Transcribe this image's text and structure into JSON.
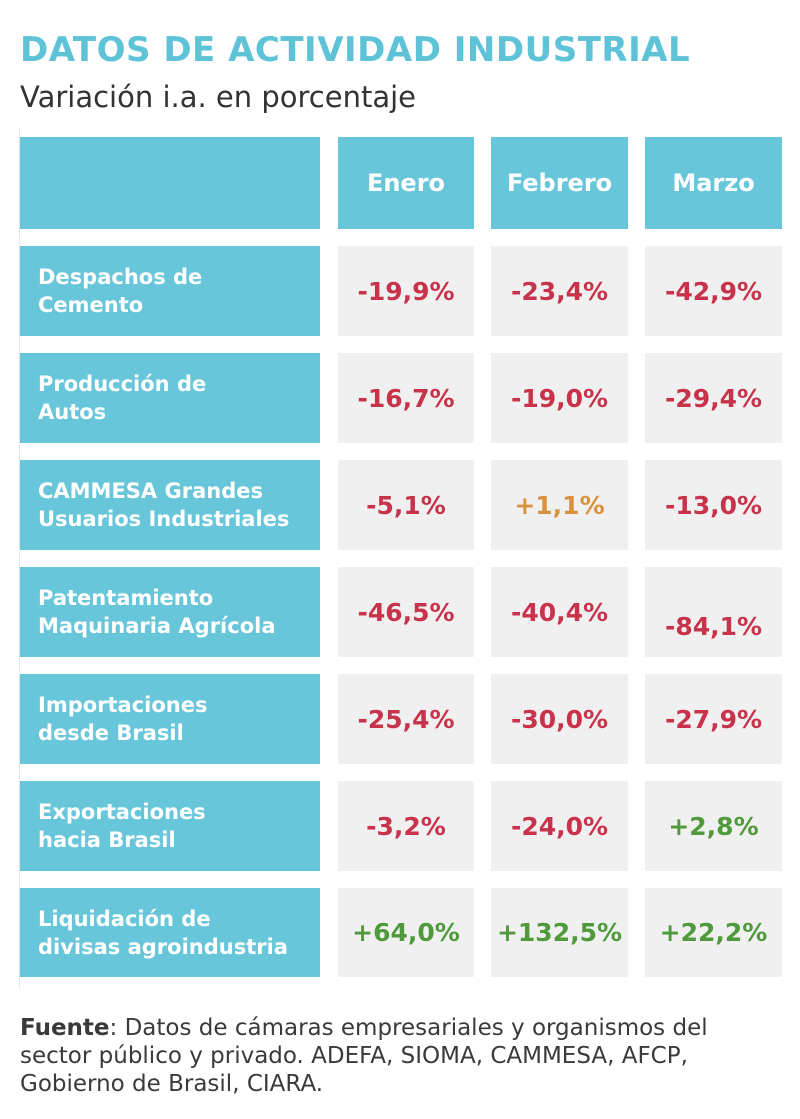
{
  "title": "DATOS DE ACTIVIDAD INDUSTRIAL",
  "subtitle": "Variación i.a. en porcentaje",
  "colors": {
    "negative": "#c8324a",
    "neutral_positive": "#d9923b",
    "positive": "#4f9a3a",
    "header_bg": "#67c6da",
    "cell_bg": "#f0f0f0"
  },
  "table": {
    "columns": [
      "Enero",
      "Febrero",
      "Marzo"
    ],
    "rows": [
      {
        "label": "Despachos de\nCemento",
        "values": [
          "-19,9%",
          "-23,4%",
          "-42,9%"
        ],
        "tones": [
          "negative",
          "negative",
          "negative"
        ]
      },
      {
        "label": "Producción de\nAutos",
        "values": [
          "-16,7%",
          "-19,0%",
          "-29,4%"
        ],
        "tones": [
          "negative",
          "negative",
          "negative"
        ]
      },
      {
        "label": "CAMMESA Grandes\nUsuarios Industriales",
        "values": [
          "-5,1%",
          "+1,1%",
          "-13,0%"
        ],
        "tones": [
          "negative",
          "neutral_positive",
          "negative"
        ]
      },
      {
        "label": "Patentamiento\nMaquinaria Agrícola",
        "values": [
          "-46,5%",
          "-40,4%",
          "-84,1%"
        ],
        "tones": [
          "negative",
          "negative",
          "negative"
        ]
      },
      {
        "label": "Importaciones\ndesde Brasil",
        "values": [
          "-25,4%",
          "-30,0%",
          "-27,9%"
        ],
        "tones": [
          "negative",
          "negative",
          "negative"
        ]
      },
      {
        "label": "Exportaciones\nhacia Brasil",
        "values": [
          "-3,2%",
          "-24,0%",
          "+2,8%"
        ],
        "tones": [
          "negative",
          "negative",
          "positive"
        ]
      },
      {
        "label": "Liquidación de\ndivisas agroindustria",
        "values": [
          "+64,0%",
          "+132,5%",
          "+22,2%"
        ],
        "tones": [
          "positive",
          "positive",
          "positive"
        ]
      }
    ]
  },
  "source": {
    "label": "Fuente",
    "text": ": Datos de cámaras empresariales y organismos del sector público y privado. ADEFA, SIOMA, CAMMESA, AFCP, Gobierno de Brasil, CIARA."
  }
}
